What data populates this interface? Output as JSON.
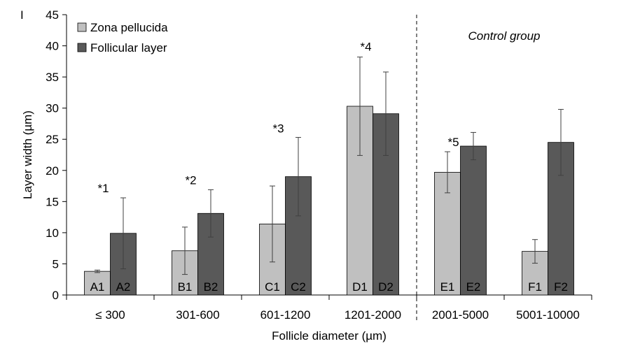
{
  "chart_data": {
    "type": "bar",
    "title": "",
    "panel_letter": "I",
    "xlabel": "Follicle diameter (µm)",
    "ylabel": "Layer width (µm)",
    "ylim": [
      0,
      45
    ],
    "yticks": [
      0,
      5,
      10,
      15,
      20,
      25,
      30,
      35,
      40,
      45
    ],
    "grid": false,
    "legend_position": "top-left",
    "categories": [
      "≤ 300",
      "301-600",
      "601-1200",
      "1201-2000",
      "2001-5000",
      "5001-10000"
    ],
    "series": [
      {
        "name": "Zona pellucida",
        "color": "#c0c0c0",
        "values": [
          3.8,
          7.1,
          11.4,
          30.3,
          19.7,
          7.0
        ],
        "error": [
          0.2,
          3.8,
          6.1,
          7.9,
          3.3,
          1.9
        ],
        "bar_labels": [
          "A1",
          "B1",
          "C1",
          "D1",
          "E1",
          "F1"
        ]
      },
      {
        "name": "Follicular layer",
        "color": "#595959",
        "values": [
          9.9,
          13.1,
          19.0,
          29.1,
          23.9,
          24.5
        ],
        "error": [
          5.7,
          3.8,
          6.3,
          6.7,
          2.2,
          5.3
        ],
        "bar_labels": [
          "A2",
          "B2",
          "C2",
          "D2",
          "E2",
          "F2"
        ]
      }
    ],
    "annotations": [
      {
        "text": "*1",
        "category": "≤ 300",
        "y": 16.5
      },
      {
        "text": "*2",
        "category": "301-600",
        "y": 17.8
      },
      {
        "text": "*3",
        "category": "601-1200",
        "y": 26.1
      },
      {
        "text": "*4",
        "category": "1201-2000",
        "y": 39.2
      },
      {
        "text": "*5",
        "category": "2001-5000",
        "y": 23.9
      }
    ],
    "control_group_label": "Control group",
    "divider_after_category": "1201-2000"
  }
}
